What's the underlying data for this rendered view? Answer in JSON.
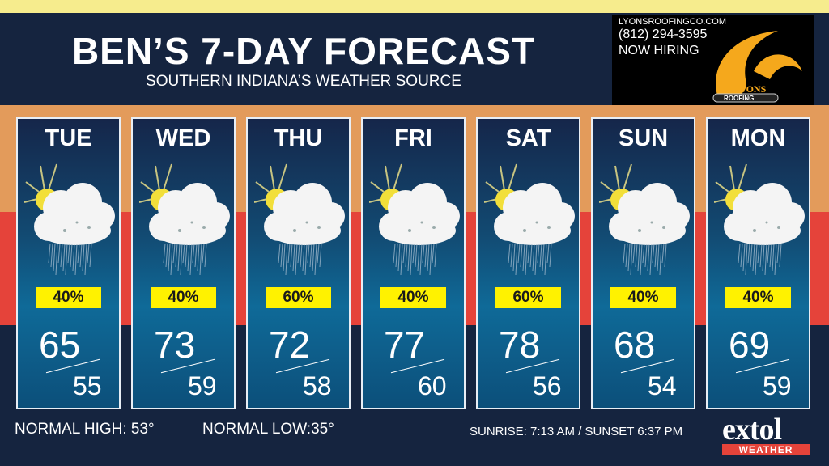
{
  "header": {
    "title": "BEN’S 7-DAY FORECAST",
    "subtitle": "SOUTHERN INDIANA’S WEATHER SOURCE"
  },
  "ad": {
    "website": "LYONSROOFINGCO.COM",
    "phone": "(812) 294-3595",
    "tagline": "NOW HIRING",
    "logo_text": "LYONS ROOFING",
    "accent": "#f5a81c"
  },
  "days": [
    {
      "day": "TUE",
      "icon": "partly-sunny-rain-icon",
      "pop": "40%",
      "high": "65",
      "low": "55"
    },
    {
      "day": "WED",
      "icon": "partly-sunny-rain-icon",
      "pop": "40%",
      "high": "73",
      "low": "59"
    },
    {
      "day": "THU",
      "icon": "partly-sunny-rain-icon",
      "pop": "60%",
      "high": "72",
      "low": "58"
    },
    {
      "day": "FRI",
      "icon": "partly-sunny-rain-icon",
      "pop": "40%",
      "high": "77",
      "low": "60"
    },
    {
      "day": "SAT",
      "icon": "partly-sunny-rain-icon",
      "pop": "60%",
      "high": "78",
      "low": "56"
    },
    {
      "day": "SUN",
      "icon": "partly-sunny-rain-icon",
      "pop": "40%",
      "high": "68",
      "low": "54"
    },
    {
      "day": "MON",
      "icon": "partly-sunny-rain-icon",
      "pop": "40%",
      "high": "69",
      "low": "59"
    }
  ],
  "footer": {
    "normal_high": "NORMAL HIGH: 53°",
    "normal_low": "NORMAL LOW:35°",
    "sun_times": "SUNRISE: 7:13 AM / SUNSET 6:37 PM"
  },
  "brand": {
    "name": "extol",
    "sub": "WEATHER",
    "accent": "#e5433a"
  },
  "colors": {
    "pop_badge": "#fff200",
    "background": "#15243f"
  }
}
